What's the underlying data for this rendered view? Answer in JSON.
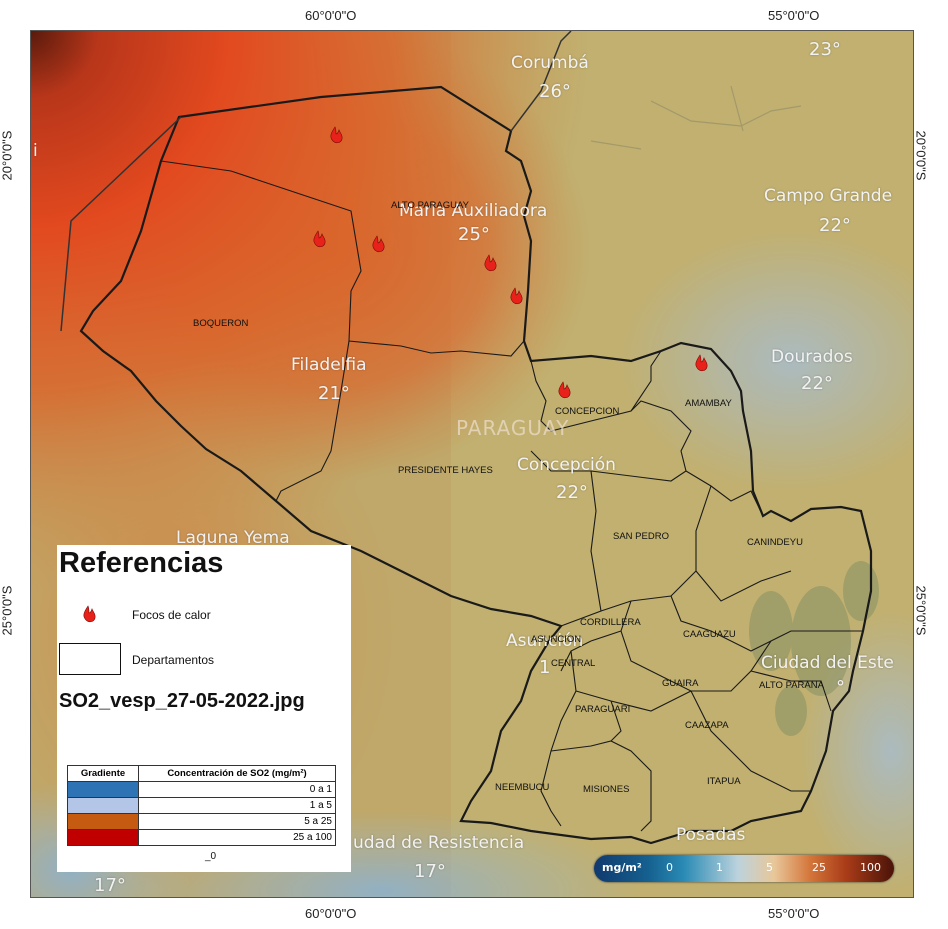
{
  "coordinates": {
    "top_left": "60°0'0\"O",
    "top_right": "55°0'0\"O",
    "bottom_left": "60°0'0\"O",
    "bottom_right": "55°0'0\"O",
    "left_upper": "20°0'0\"S",
    "left_lower": "25°0'0\"S",
    "right_upper": "20°0'0\"S",
    "right_lower": "25°0'0\"S"
  },
  "cities": {
    "corumba": "Corumbá",
    "corumba_temp": "26°",
    "top_right_temp": "23°",
    "campo_grande": "Campo Grande",
    "campo_grande_temp": "22°",
    "maria_auxiliadora": "Maria Auxiliadora",
    "maria_auxiliadora_temp": "25°",
    "filadelfia": "Filadelfia",
    "filadelfia_temp": "21°",
    "dourados": "Dourados",
    "dourados_temp": "22°",
    "concepcion": "Concepción",
    "concepcion_temp": "22°",
    "laguna_yema": "Laguna Yema",
    "asuncion": "Asunción",
    "asuncion_temp": "1",
    "ciudad_del_este": "Ciudad del Este",
    "ciudad_del_este_temp": "°",
    "resistencia": "udad de Resistencia",
    "resistencia_temp": "17°",
    "bottom_left_temp": "17°",
    "posadas": "Posadas",
    "left_edge_fragment": "i"
  },
  "country_label": "PARAGUAY",
  "departments": {
    "alto_paraguay": "ALTO PARAGUAY",
    "boqueron": "BOQUERON",
    "concepcion": "CONCEPCION",
    "amambay": "AMAMBAY",
    "presidente_hayes": "PRESIDENTE HAYES",
    "san_pedro": "SAN PEDRO",
    "canindeyu": "CANINDEYU",
    "cordillera": "CORDILLERA",
    "asuncion": "ASUNCION",
    "central": "CENTRAL",
    "caaguazu": "CAAGUAZU",
    "alto_parana": "ALTO PARANA",
    "guaira": "GUAIRA",
    "paraguari": "PARAGUARI",
    "caazapa": "CAAZAPA",
    "neembucu": "NEEMBUCU",
    "misiones": "MISIONES",
    "itapua": "ITAPUA"
  },
  "fire_count": 7,
  "legend": {
    "title": "Referencias",
    "fire_label": "Focos de calor",
    "dept_label": "Departamentos",
    "filename": "SO2_vesp_27-05-2022.jpg",
    "table_header_gradient": "Gradiente",
    "table_header_concentration": "Concentración de SO2 (mg/m²)",
    "rows": [
      {
        "range": "0 a 1",
        "color": "#2e74b5"
      },
      {
        "range": "1 a 5",
        "color": "#b4c6e7"
      },
      {
        "range": "5 a 25",
        "color": "#c55a11"
      },
      {
        "range": "25 a 100",
        "color": "#c00000"
      }
    ],
    "stray_fragment": "_0"
  },
  "colorbar": {
    "unit": "mg/m²",
    "ticks": [
      "0",
      "1",
      "5",
      "25",
      "100"
    ]
  }
}
